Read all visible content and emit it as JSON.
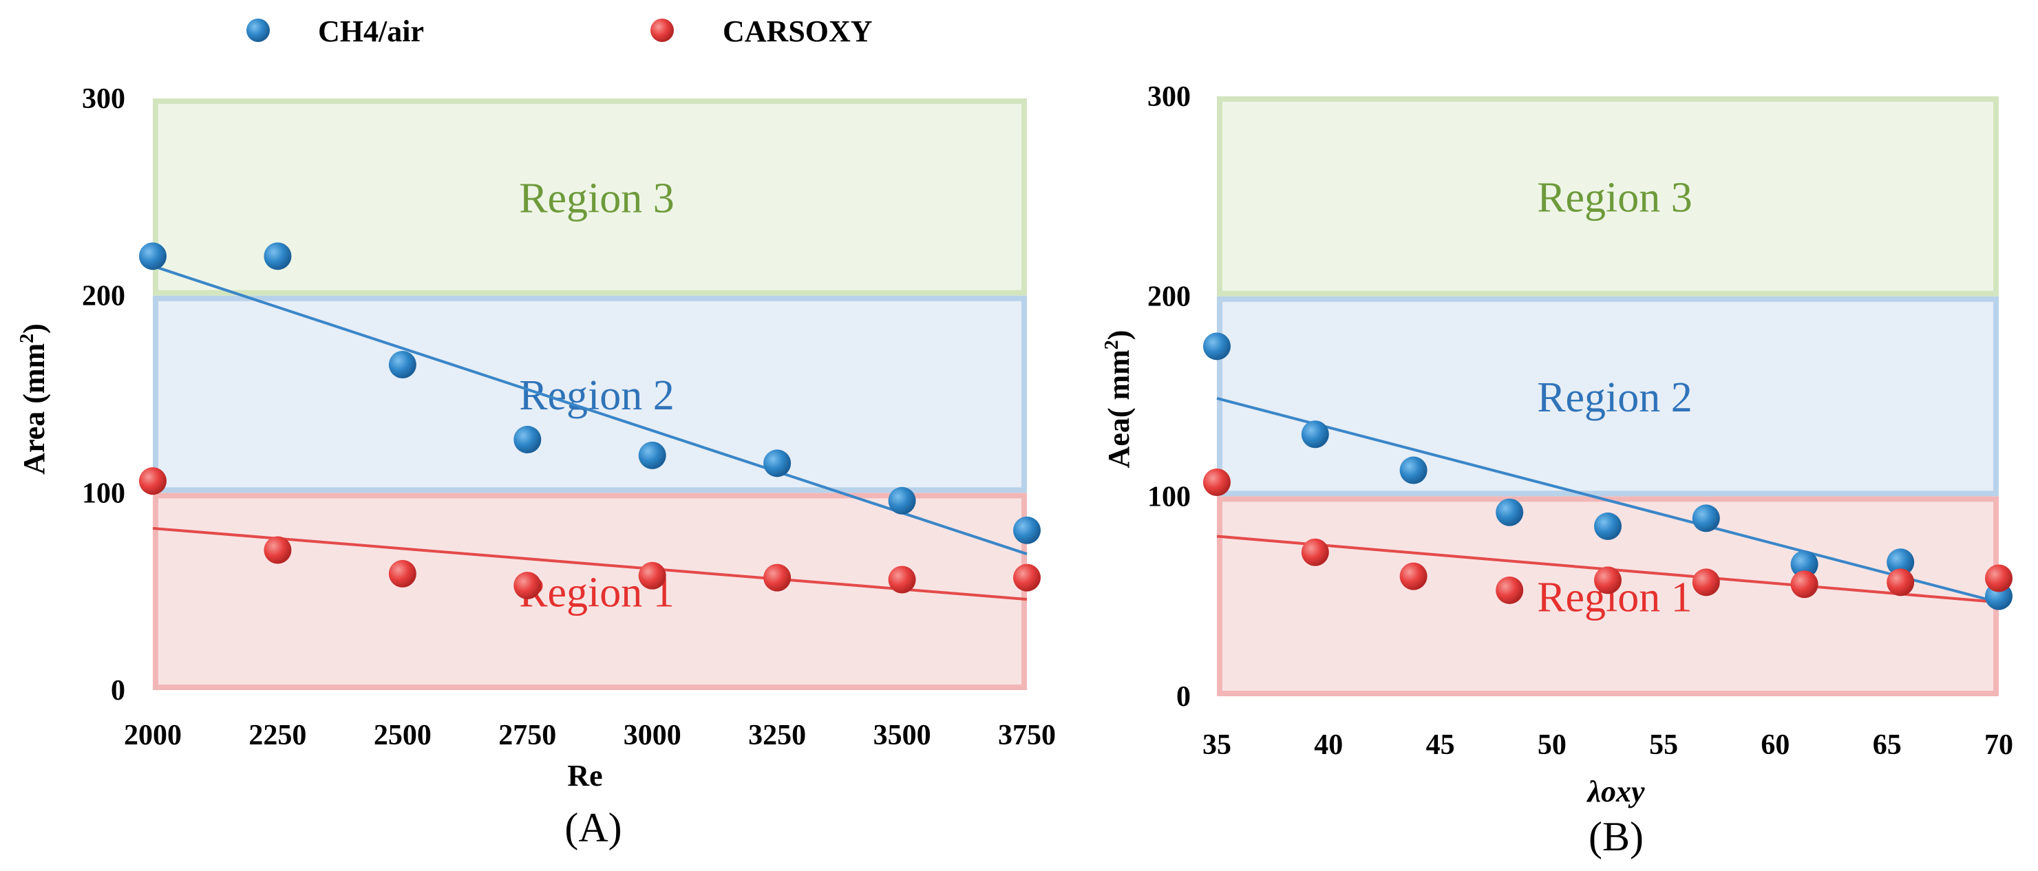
{
  "legend": {
    "ch4": "CH4/air",
    "carsoxy": "CARSOXY"
  },
  "colors": {
    "ch4": "#2e86c8",
    "carsoxy": "#e8403f",
    "ch4_fit": "#3a86c8",
    "carsoxy_fit": "#e44a4a",
    "region1_fill": "#f8e3e3",
    "region1_edge": "#f2b6b6",
    "region2_fill": "#e6eef7",
    "region2_edge": "#b8d2ea",
    "region3_fill": "#eef5e6",
    "region3_edge": "#d3e5bf",
    "region1_text": "#e4312f",
    "region2_text": "#2f73b8",
    "region3_text": "#6e9a3b"
  },
  "chart_data": [
    {
      "type": "scatter",
      "panel_label": "(A)",
      "xlabel": "Re",
      "ylabel": "Area (mm",
      "ylabel_sup": "2",
      "ylabel_end": ")",
      "xlim": [
        2000,
        3750
      ],
      "ylim": [
        0,
        300
      ],
      "xticks": [
        "2000",
        "2250",
        "2500",
        "2750",
        "3000",
        "3250",
        "3500",
        "3750"
      ],
      "xtick_values": [
        2000,
        2250,
        2500,
        2750,
        3000,
        3250,
        3500,
        3750
      ],
      "yticks": [
        "0",
        "100",
        "200",
        "300"
      ],
      "ytick_values": [
        0,
        100,
        200,
        300
      ],
      "regions": [
        {
          "name": "Region 1",
          "from": 0,
          "to": 100
        },
        {
          "name": "Region 2",
          "from": 100,
          "to": 200
        },
        {
          "name": "Region 3",
          "from": 200,
          "to": 300
        }
      ],
      "series": [
        {
          "name": "CH4/air",
          "x": [
            2000,
            2250,
            2500,
            2750,
            3000,
            3250,
            3500,
            3750
          ],
          "y": [
            220,
            220,
            165,
            127,
            119,
            115,
            96,
            81
          ],
          "trend": [
            [
              2000,
              215
            ],
            [
              3750,
              69
            ]
          ]
        },
        {
          "name": "CARSOXY",
          "x": [
            2000,
            2250,
            2500,
            2750,
            3000,
            3250,
            3500,
            3750
          ],
          "y": [
            106,
            71,
            59,
            53,
            58,
            57,
            56,
            57
          ],
          "trend": [
            [
              2000,
              82
            ],
            [
              3750,
              46
            ]
          ]
        }
      ]
    },
    {
      "type": "scatter",
      "panel_label": "(B)",
      "xlabel": "λoxy",
      "ylabel": "Aea( mm",
      "ylabel_sup": "2",
      "ylabel_end": ")",
      "xlim": [
        35,
        70
      ],
      "ylim": [
        0,
        300
      ],
      "xticks": [
        "35",
        "40",
        "45",
        "50",
        "55",
        "60",
        "65",
        "70"
      ],
      "xtick_values": [
        35,
        40,
        45,
        50,
        55,
        60,
        65,
        70
      ],
      "yticks": [
        "0",
        "100",
        "200",
        "300"
      ],
      "ytick_values": [
        0,
        100,
        200,
        300
      ],
      "regions": [
        {
          "name": "Region 1",
          "from": 0,
          "to": 100
        },
        {
          "name": "Region 2",
          "from": 100,
          "to": 200
        },
        {
          "name": "Region 3",
          "from": 200,
          "to": 300
        }
      ],
      "series": [
        {
          "name": "CH4/air",
          "x": [
            35,
            39.4,
            43.8,
            48.1,
            52.5,
            56.9,
            61.3,
            65.6,
            70
          ],
          "y": [
            175,
            131,
            113,
            92,
            85,
            89,
            66,
            67,
            50
          ],
          "trend": [
            [
              35,
              149
            ],
            [
              70,
              47
            ]
          ]
        },
        {
          "name": "CARSOXY",
          "x": [
            35,
            39.4,
            43.8,
            48.1,
            52.5,
            56.9,
            61.3,
            65.6,
            70
          ],
          "y": [
            107,
            72,
            60,
            53,
            58,
            57,
            56,
            57,
            59
          ],
          "trend": [
            [
              35,
              80
            ],
            [
              70,
              47
            ]
          ]
        }
      ]
    }
  ]
}
